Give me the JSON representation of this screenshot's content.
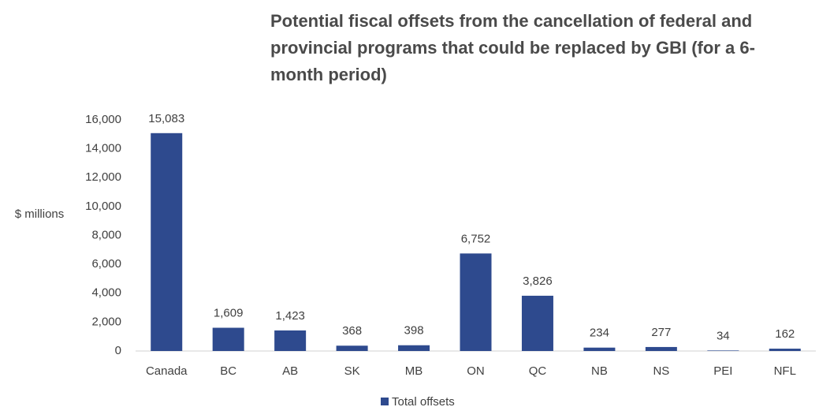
{
  "chart_data": {
    "type": "bar",
    "title": "Potential fiscal offsets from the cancellation of federal and provincial programs that could be replaced by GBI (for a 6-month period)",
    "y_label": "$ millions",
    "categories": [
      "Canada",
      "BC",
      "AB",
      "SK",
      "MB",
      "ON",
      "QC",
      "NB",
      "NS",
      "PEI",
      "NFL"
    ],
    "series": [
      {
        "name": "Total offsets",
        "color": "#2e4a8e",
        "values": [
          15083,
          1609,
          1423,
          368,
          398,
          6752,
          3826,
          234,
          277,
          34,
          162
        ],
        "value_labels": [
          "15,083",
          "1,609",
          "1,423",
          "368",
          "398",
          "6,752",
          "3,826",
          "234",
          "277",
          "34",
          "162"
        ]
      }
    ],
    "ylim": [
      0,
      16000
    ],
    "yticks": [
      0,
      {
        "value": 2000,
        "label": "2,000"
      },
      {
        "value": 4000,
        "label": "4,000"
      },
      {
        "value": 6000,
        "label": "6,000"
      },
      {
        "value": 8000,
        "label": "8,000"
      },
      {
        "value": 10000,
        "label": "10,000"
      },
      {
        "value": 12000,
        "label": "12,000"
      },
      {
        "value": 14000,
        "label": "14,000"
      },
      {
        "value": 16000,
        "label": "16,000"
      }
    ],
    "grid": false,
    "legend": "bottom"
  }
}
